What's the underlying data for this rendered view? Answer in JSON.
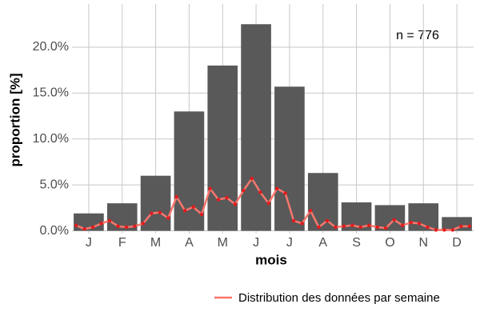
{
  "chart_data": {
    "type": "bar",
    "categories": [
      "J",
      "F",
      "M",
      "A",
      "M",
      "J",
      "J",
      "A",
      "S",
      "O",
      "N",
      "D"
    ],
    "values": [
      1.9,
      3.0,
      6.0,
      13.0,
      18.0,
      22.5,
      15.7,
      6.3,
      3.1,
      2.8,
      3.0,
      1.5
    ],
    "color": "#595959",
    "xlabel": "mois",
    "ylabel": "proportion [%]",
    "annotation": "n = 776",
    "ylim": [
      -0.3,
      24.7
    ],
    "yticks": [
      {
        "value": 0,
        "label": "0.0%"
      },
      {
        "value": 5,
        "label": "5.0%"
      },
      {
        "value": 10,
        "label": "10.0%"
      },
      {
        "value": 15,
        "label": "15.0%"
      },
      {
        "value": 20,
        "label": "20.0%"
      }
    ],
    "grid": true,
    "legend": "bottom-right",
    "overlay": {
      "type": "line",
      "name": "Distribution des données par semaine",
      "color": "#f8766d",
      "point_color": "#e41a1c",
      "values": [
        0.6,
        0.2,
        0.4,
        0.8,
        1.1,
        0.5,
        0.4,
        0.5,
        0.8,
        1.9,
        2.0,
        1.4,
        3.7,
        2.2,
        2.6,
        1.8,
        4.6,
        3.4,
        3.6,
        2.9,
        4.4,
        5.7,
        4.2,
        3.0,
        4.6,
        4.1,
        1.1,
        0.8,
        2.2,
        0.4,
        1.1,
        0.4,
        0.5,
        0.6,
        0.4,
        0.6,
        0.4,
        0.3,
        1.2,
        0.6,
        0.9,
        0.8,
        0.4,
        0.1,
        0.1,
        0.1,
        0.5,
        0.5
      ]
    }
  }
}
